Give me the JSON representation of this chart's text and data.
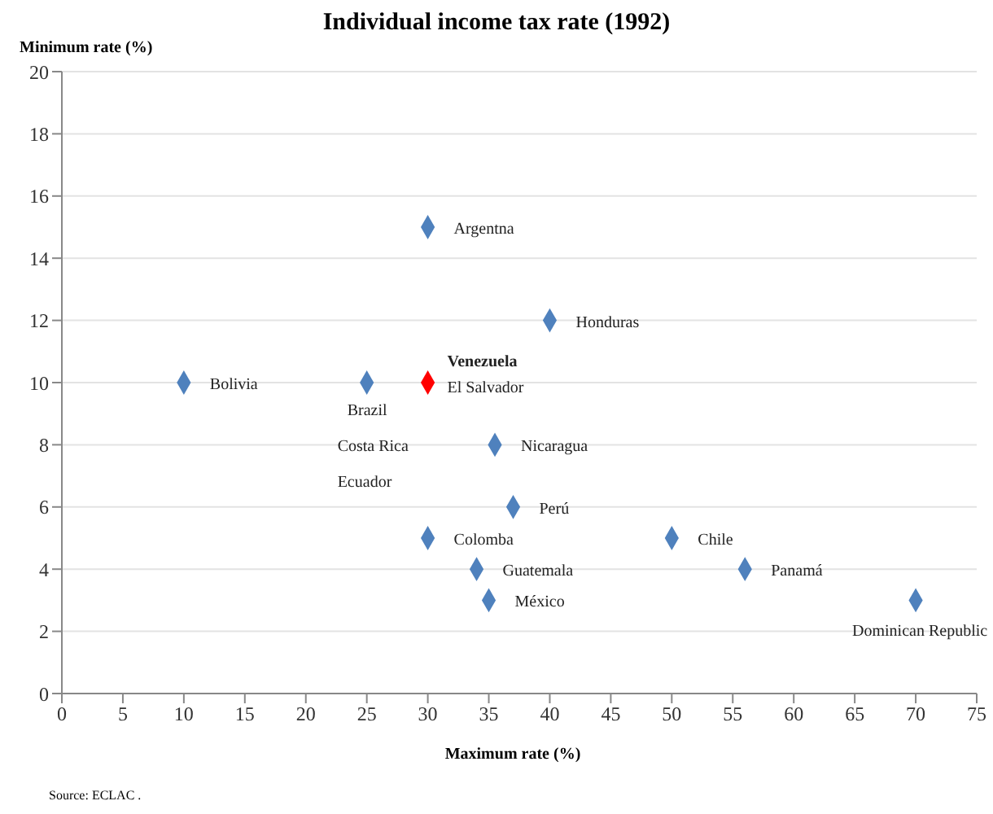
{
  "chart_data": {
    "type": "scatter",
    "title": "Individual income tax rate (1992)",
    "xlabel": "Maximum rate (%)",
    "ylabel": "Minimum rate (%)",
    "series": [
      {
        "color": "#4f81bd",
        "x": [
          30,
          40,
          10,
          25,
          35.5,
          37,
          30,
          50,
          34,
          56,
          35,
          70
        ],
        "values": [
          15,
          12,
          10,
          10,
          8,
          6,
          5,
          5,
          4,
          4,
          3,
          3
        ]
      },
      {
        "color": "#ff0000",
        "x": [
          30
        ],
        "values": [
          10
        ]
      }
    ],
    "xlim": [
      0,
      75
    ],
    "xticks": [
      0,
      5,
      10,
      15,
      20,
      25,
      30,
      35,
      40,
      45,
      50,
      55,
      60,
      65,
      70,
      75
    ],
    "ylim": [
      0,
      20
    ],
    "yticks": [
      0,
      2,
      4,
      6,
      8,
      10,
      12,
      14,
      16,
      18,
      20
    ],
    "grid": "y",
    "marker": "diamond",
    "legend": false,
    "annotations": [
      {
        "text": "Argentna",
        "x": 30,
        "y": 15
      },
      {
        "text": "Honduras",
        "x": 40,
        "y": 12
      },
      {
        "text": "Bolivia",
        "x": 10,
        "y": 10
      },
      {
        "text": "Venezuela",
        "x": 30,
        "y": 10
      },
      {
        "text": "El Salvador",
        "x": 30,
        "y": 10
      },
      {
        "text": "Brazil\nCosta Rica\nEcuador",
        "x": 25,
        "y": 10
      },
      {
        "text": "Nicaragua",
        "x": 35.5,
        "y": 8
      },
      {
        "text": "Perú",
        "x": 37,
        "y": 6
      },
      {
        "text": "Colomba",
        "x": 30,
        "y": 5
      },
      {
        "text": "Chile",
        "x": 50,
        "y": 5
      },
      {
        "text": "Guatemala",
        "x": 34,
        "y": 4
      },
      {
        "text": "Panamá",
        "x": 56,
        "y": 4
      },
      {
        "text": "México",
        "x": 35,
        "y": 3
      },
      {
        "text": "Dominican Republic",
        "x": 70,
        "y": 3
      },
      "Source: ECLAC ."
    ]
  }
}
